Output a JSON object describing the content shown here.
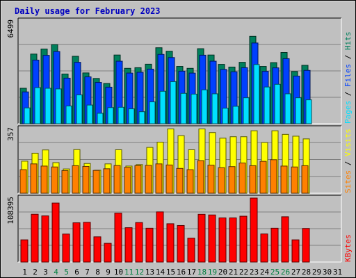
{
  "page": {
    "title": "Daily usage for February 2023"
  },
  "colors": {
    "background": "#c0c0c0",
    "plot_bg": "#c0c0c0",
    "hits": "#00805c",
    "files": "#0040ff",
    "pages": "#00e0ff",
    "visits": "#ffff00",
    "sites": "#ff8000",
    "kbytes": "#ff0000",
    "title": "#0000c0",
    "weekend": "#008040",
    "weekday": "#000000"
  },
  "chart_data": {
    "type": "bar",
    "categories": [
      "1",
      "2",
      "3",
      "4",
      "5",
      "6",
      "7",
      "8",
      "9",
      "10",
      "11",
      "12",
      "13",
      "14",
      "15",
      "16",
      "17",
      "18",
      "19",
      "20",
      "21",
      "22",
      "23",
      "24",
      "25",
      "26",
      "27",
      "28",
      "29",
      "30",
      "31"
    ],
    "weekend_days": [
      "4",
      "5",
      "11",
      "12",
      "18",
      "19",
      "25",
      "26"
    ],
    "panels": [
      {
        "name": "hits-files-pages",
        "max_label": "6499",
        "ylim": [
          0,
          6499
        ],
        "legend": [
          "Pages",
          "Files",
          "Hits"
        ],
        "series": [
          {
            "name": "Hits",
            "values": [
              2240,
              4400,
              4720,
              5000,
              3140,
              4260,
              3210,
              2860,
              2540,
              4340,
              3500,
              3540,
              3760,
              4800,
              4580,
              3620,
              3500,
              4740,
              4340,
              3750,
              3580,
              3880,
              5520,
              3620,
              3860,
              4500,
              3300,
              3690,
              0,
              0,
              0
            ]
          },
          {
            "name": "Files",
            "values": [
              2010,
              4020,
              4320,
              4560,
              2880,
              3880,
              2960,
              2610,
              2310,
              3950,
              3200,
              3250,
              3450,
              4380,
              4180,
              3320,
              3200,
              4330,
              3950,
              3430,
              3280,
              3540,
              5100,
              3310,
              3530,
              4110,
              3010,
              3370,
              0,
              0,
              0
            ]
          },
          {
            "name": "Pages",
            "values": [
              1000,
              2280,
              2240,
              2200,
              1120,
              1820,
              1180,
              660,
              1020,
              1040,
              940,
              760,
              1380,
              2050,
              2660,
              1920,
              1870,
              2140,
              1890,
              980,
              1100,
              1640,
              3740,
              2320,
              2490,
              1890,
              1640,
              1510,
              0,
              0,
              0
            ]
          }
        ]
      },
      {
        "name": "visits-sites",
        "max_label": "357",
        "ylim": [
          0,
          357
        ],
        "legend": [
          "Sites",
          "Visits"
        ],
        "series": [
          {
            "name": "Visits",
            "values": [
              177,
              221,
              239,
              169,
              134,
              241,
              164,
              127,
              162,
              240,
              150,
              158,
              253,
              282,
              355,
              318,
              240,
              355,
              335,
              304,
              312,
              312,
              345,
              280,
              345,
              325,
              315,
              300,
              0,
              0,
              0
            ]
          },
          {
            "name": "Sites",
            "values": [
              130,
              162,
              150,
              145,
              125,
              152,
              148,
              126,
              135,
              153,
              143,
              153,
              154,
              162,
              156,
              137,
              130,
              180,
              155,
              141,
              147,
              167,
              152,
              176,
              185,
              150,
              145,
              152,
              0,
              0,
              0
            ]
          }
        ]
      },
      {
        "name": "kbytes",
        "max_label": "108395",
        "ylim": [
          0,
          108395
        ],
        "legend": [
          "KBytes"
        ],
        "series": [
          {
            "name": "KBytes",
            "values": [
              37600,
              81000,
              78200,
              100000,
              47400,
              66500,
              67300,
              42700,
              31700,
              82900,
              58200,
              66900,
              57300,
              85000,
              64900,
              61900,
              40500,
              80900,
              79800,
              74800,
              74800,
              77700,
              108395,
              47600,
              57300,
              76700,
              37600,
              56900,
              0,
              0,
              0
            ]
          }
        ]
      }
    ]
  }
}
